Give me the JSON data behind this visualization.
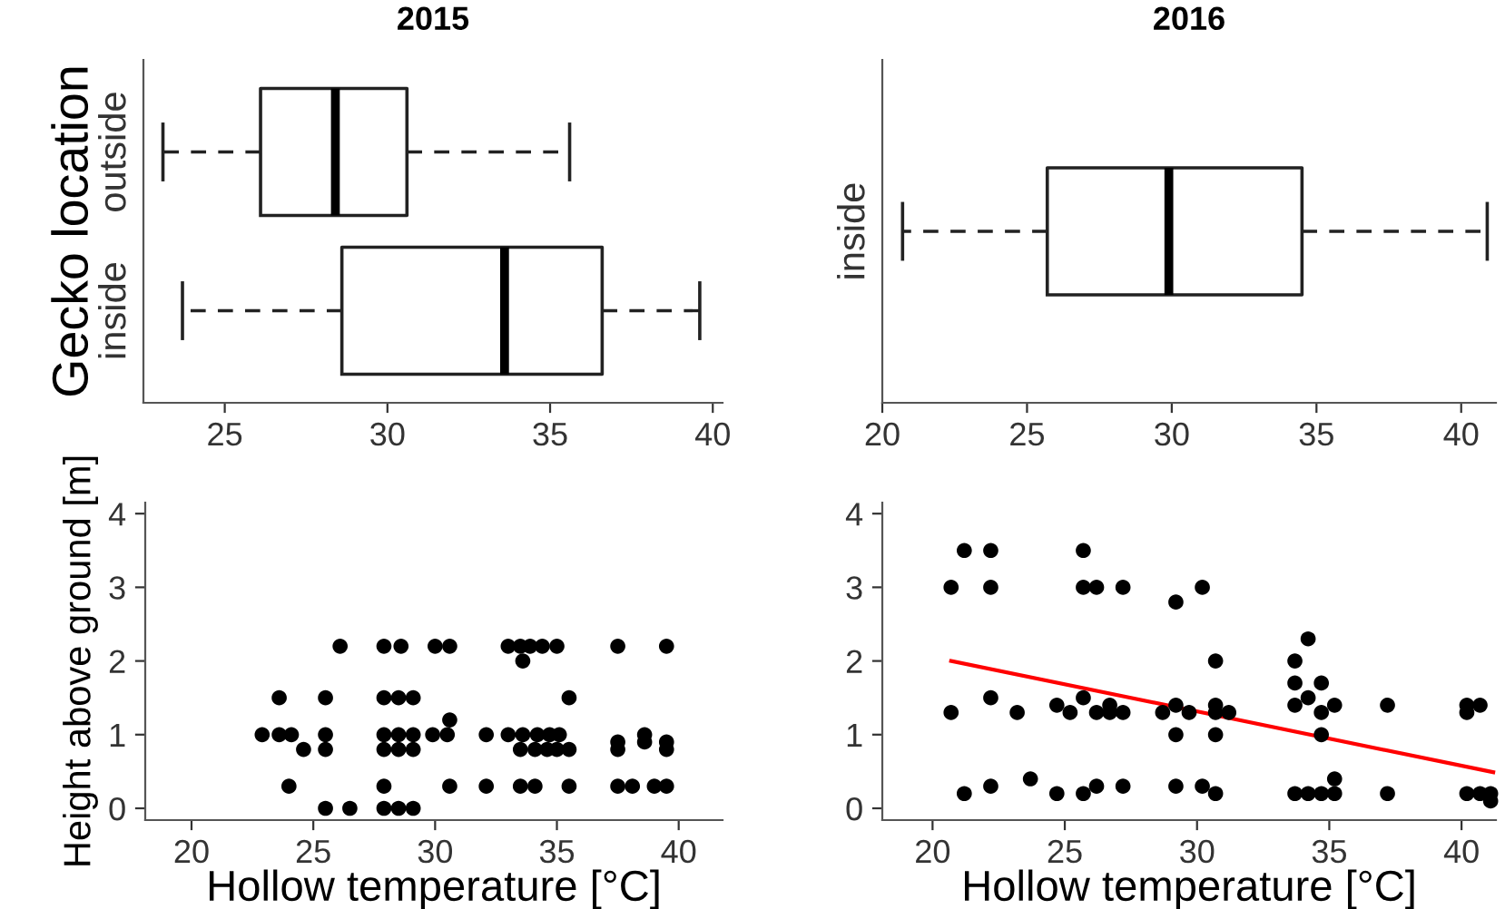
{
  "chart_data": [
    {
      "type": "box",
      "orientation": "horizontal",
      "title": "2015",
      "ylabel": "Gecko location",
      "categories": [
        "outside",
        "inside"
      ],
      "boxes": [
        {
          "low": 23.1,
          "q1": 26.1,
          "median": 28.4,
          "q3": 30.6,
          "high": 35.6
        },
        {
          "low": 23.7,
          "q1": 28.6,
          "median": 33.6,
          "q3": 36.6,
          "high": 39.6
        }
      ],
      "xlim": [
        22.5,
        40.3
      ],
      "xticks": [
        25,
        30,
        35,
        40
      ],
      "grid": false
    },
    {
      "type": "box",
      "orientation": "horizontal",
      "title": "2016",
      "categories": [
        "inside"
      ],
      "boxes": [
        {
          "low": 20.7,
          "q1": 25.7,
          "median": 29.9,
          "q3": 34.5,
          "high": 40.9
        }
      ],
      "xlim": [
        20,
        41.2
      ],
      "xticks": [
        20,
        25,
        30,
        35,
        40
      ],
      "grid": false
    },
    {
      "type": "scatter",
      "xlabel": "Hollow temperature [°C]",
      "ylabel": "Height above ground [m]",
      "marker": "circle",
      "grid": false,
      "xlim": [
        18.1,
        41.8
      ],
      "ylim": [
        -0.16,
        4.15
      ],
      "xticks": [
        20,
        25,
        30,
        35,
        40
      ],
      "yticks": [
        0,
        1,
        2,
        3,
        4
      ],
      "series": [
        {
          "color": "#000000",
          "x": [
            26.1,
            27.9,
            28.6,
            30.0,
            30.6,
            33.0,
            33.5,
            33.9,
            34.4,
            35.0,
            37.5,
            39.5,
            33.6,
            23.6,
            25.5,
            27.9,
            28.5,
            29.1,
            35.5,
            30.6,
            22.9,
            23.6,
            24.1,
            25.5,
            27.9,
            28.5,
            29.1,
            29.9,
            30.5,
            32.1,
            33.0,
            33.6,
            34.2,
            34.7,
            35.1,
            37.5,
            38.6,
            39.5,
            24.6,
            25.5,
            27.9,
            28.5,
            29.1,
            33.5,
            34.1,
            34.6,
            35.0,
            35.5,
            37.5,
            38.6,
            39.5,
            24.0,
            27.9,
            30.6,
            32.1,
            33.5,
            34.1,
            35.5,
            37.5,
            38.1,
            39.0,
            39.5,
            25.5,
            26.5,
            27.9,
            28.5,
            29.1
          ],
          "values": [
            2.2,
            2.2,
            2.2,
            2.2,
            2.2,
            2.2,
            2.2,
            2.2,
            2.2,
            2.2,
            2.2,
            2.2,
            2.0,
            1.5,
            1.5,
            1.5,
            1.5,
            1.5,
            1.5,
            1.2,
            1.0,
            1.0,
            1.0,
            1.0,
            1.0,
            1.0,
            1.0,
            1.0,
            1.0,
            1.0,
            1.0,
            1.0,
            1.0,
            1.0,
            1.0,
            0.9,
            1.0,
            0.9,
            0.8,
            0.8,
            0.8,
            0.8,
            0.8,
            0.8,
            0.8,
            0.8,
            0.8,
            0.8,
            0.8,
            0.9,
            0.8,
            0.3,
            0.3,
            0.3,
            0.3,
            0.3,
            0.3,
            0.3,
            0.3,
            0.3,
            0.3,
            0.3,
            0.0,
            0.0,
            0.0,
            0.0,
            0.0
          ]
        }
      ]
    },
    {
      "type": "scatter",
      "xlabel": "Hollow temperature [°C]",
      "marker": "circle",
      "grid": false,
      "xlim": [
        18.1,
        41.3
      ],
      "ylim": [
        -0.16,
        4.15
      ],
      "xticks": [
        20,
        25,
        30,
        35,
        40
      ],
      "yticks": [
        0,
        1,
        2,
        3,
        4
      ],
      "series": [
        {
          "color": "#000000",
          "x": [
            21.2,
            22.2,
            25.7,
            20.7,
            22.2,
            25.7,
            26.2,
            27.2,
            30.2,
            29.2,
            30.7,
            33.7,
            34.2,
            33.7,
            34.7,
            22.2,
            25.7,
            34.2,
            24.7,
            26.7,
            29.2,
            30.7,
            33.7,
            35.2,
            37.2,
            40.2,
            40.7,
            20.7,
            23.2,
            25.2,
            26.2,
            26.7,
            27.2,
            28.7,
            29.7,
            30.7,
            31.2,
            34.7,
            40.2,
            29.2,
            30.7,
            34.7,
            23.7,
            35.2,
            22.2,
            26.2,
            27.2,
            29.2,
            30.2,
            21.2,
            24.7,
            25.7,
            30.7,
            33.7,
            34.2,
            34.7,
            35.2,
            37.2,
            40.2,
            40.7,
            41.1,
            41.1
          ],
          "values": [
            3.5,
            3.5,
            3.5,
            3.0,
            3.0,
            3.0,
            3.0,
            3.0,
            3.0,
            2.8,
            2.0,
            2.0,
            2.3,
            1.7,
            1.7,
            1.5,
            1.5,
            1.5,
            1.4,
            1.4,
            1.4,
            1.4,
            1.4,
            1.4,
            1.4,
            1.4,
            1.4,
            1.3,
            1.3,
            1.3,
            1.3,
            1.3,
            1.3,
            1.3,
            1.3,
            1.3,
            1.3,
            1.3,
            1.3,
            1.0,
            1.0,
            1.0,
            0.4,
            0.4,
            0.3,
            0.3,
            0.3,
            0.3,
            0.3,
            0.2,
            0.2,
            0.2,
            0.2,
            0.2,
            0.2,
            0.2,
            0.2,
            0.2,
            0.2,
            0.2,
            0.2,
            0.1
          ]
        },
        {
          "type": "line",
          "marker": "none",
          "color": "#ff0000",
          "x": [
            20.7,
            41.2
          ],
          "values": [
            2.0,
            0.49
          ]
        }
      ]
    }
  ]
}
